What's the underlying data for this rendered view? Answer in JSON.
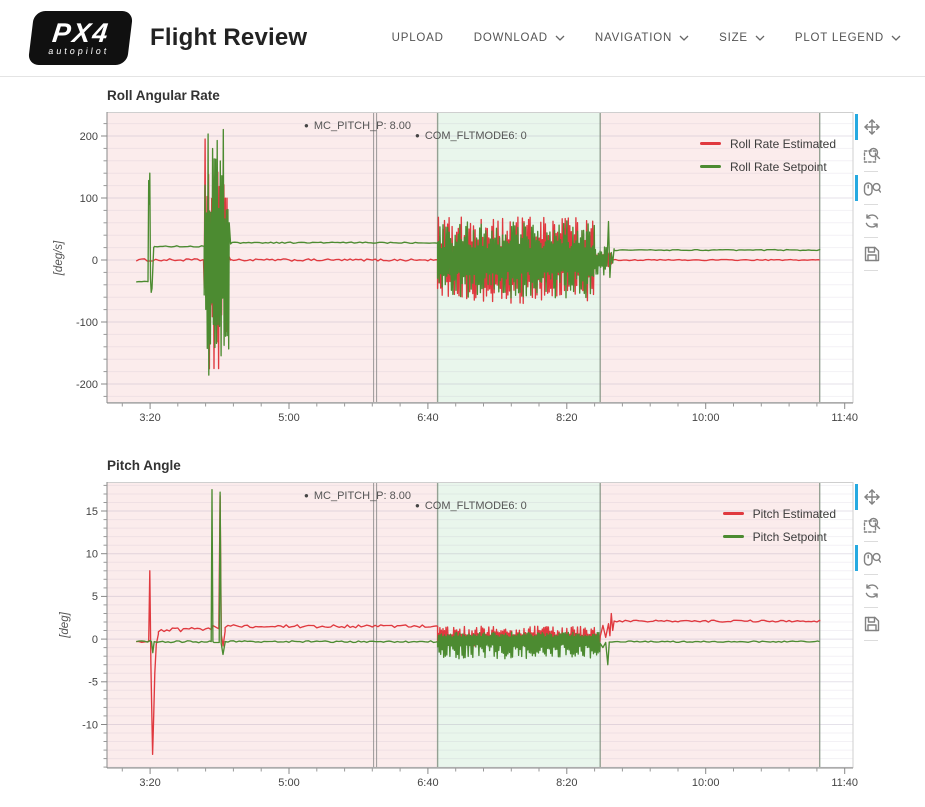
{
  "header": {
    "logo": {
      "line1": "PX4",
      "line2": "autopilot"
    },
    "title": "Flight Review",
    "nav": [
      {
        "label": "UPLOAD",
        "dropdown": false
      },
      {
        "label": "DOWNLOAD",
        "dropdown": true
      },
      {
        "label": "NAVIGATION",
        "dropdown": true
      },
      {
        "label": "SIZE",
        "dropdown": true
      },
      {
        "label": "PLOT LEGEND",
        "dropdown": true
      }
    ]
  },
  "toolbar": {
    "active_color": "#26aae1",
    "tools": [
      {
        "name": "pan",
        "active": true
      },
      {
        "name": "box-zoom",
        "active": false
      },
      {
        "name": "wheel-zoom",
        "active": true
      },
      {
        "name": "reset",
        "active": false
      },
      {
        "name": "save",
        "active": false
      }
    ]
  },
  "colors": {
    "estimated_line": "#e0393f",
    "setpoint_line": "#4c8b31",
    "region_pink": "rgba(205,32,32,0.085)",
    "region_green": "rgba(22,156,51,0.095)",
    "grid": "#8a7aa0",
    "mode_line": "#7d8d7d",
    "param_line": "#8a8a8a",
    "axis_text": "#444444",
    "annotation_text": "#555555"
  },
  "chart_data": [
    {
      "type": "line",
      "title": "Roll Angular Rate",
      "ylabel": "[deg/s]",
      "x_range": [
        169,
        706
      ],
      "y_range": [
        -230.6,
        238.7
      ],
      "x_ticks": [
        {
          "t": 200,
          "label": "3:20"
        },
        {
          "t": 300,
          "label": "5:00"
        },
        {
          "t": 400,
          "label": "6:40"
        },
        {
          "t": 500,
          "label": "8:20"
        },
        {
          "t": 600,
          "label": "10:00"
        },
        {
          "t": 700,
          "label": "11:40"
        }
      ],
      "x_minor_step": 20,
      "y_ticks": [
        -200,
        -100,
        0,
        100,
        200
      ],
      "y_minor_step": 20,
      "regions": [
        {
          "t0": 169,
          "t1": 407,
          "kind": "pink"
        },
        {
          "t0": 407,
          "t1": 524,
          "kind": "green"
        },
        {
          "t0": 524,
          "t1": 682,
          "kind": "pink"
        }
      ],
      "vlines": [
        {
          "t": 362,
          "kind": "param"
        },
        {
          "t": 407,
          "kind": "mode"
        },
        {
          "t": 524,
          "kind": "mode"
        },
        {
          "t": 682,
          "kind": "mode"
        }
      ],
      "annotations": [
        {
          "label": "MC_PITCH_P: 8.00",
          "t": 311,
          "row": 0
        },
        {
          "label": "COM_FLTMODE6: 0",
          "t": 391,
          "row": 1
        }
      ],
      "legend": [
        {
          "label": "Roll Rate Estimated",
          "color_key": "estimated_line"
        },
        {
          "label": "Roll Rate Setpoint",
          "color_key": "setpoint_line"
        }
      ],
      "series": [
        {
          "name": "Roll Rate Estimated",
          "color_key": "estimated_line",
          "segments": [
            {
              "k": "flat",
              "t0": 190,
              "t1": 238,
              "y": 0,
              "n": 2
            },
            {
              "k": "pts",
              "p": [
                [
                  238.5,
                  0
                ],
                [
                  239,
                  -45
                ],
                [
                  239.6,
                  195
                ],
                [
                  240.1,
                  -60
                ],
                [
                  240.5,
                  30
                ]
              ]
            },
            {
              "k": "osc",
              "t0": 240.5,
              "t1": 256,
              "lo": -178,
              "hi": 150
            },
            {
              "k": "pts",
              "p": [
                [
                  256,
                  -30
                ],
                [
                  257,
                  5
                ],
                [
                  258,
                  0
                ]
              ]
            },
            {
              "k": "flat",
              "t0": 258,
              "t1": 407,
              "y": 0,
              "n": 1.8
            },
            {
              "k": "osc",
              "t0": 407,
              "t1": 520,
              "lo": -70,
              "hi": 70
            },
            {
              "k": "osc",
              "t0": 520,
              "t1": 533,
              "lo": -14,
              "hi": 12
            },
            {
              "k": "flat",
              "t0": 533,
              "t1": 682,
              "y": 0,
              "n": 0.9
            }
          ]
        },
        {
          "name": "Roll Rate Setpoint",
          "color_key": "setpoint_line",
          "segments": [
            {
              "k": "flat",
              "t0": 190,
              "t1": 198.5,
              "y": -35,
              "n": 0.8
            },
            {
              "k": "pts",
              "p": [
                [
                  198.5,
                  -35
                ],
                [
                  199,
                  128
                ],
                [
                  199.4,
                  90
                ],
                [
                  199.8,
                  140
                ],
                [
                  200.3,
                  -30
                ],
                [
                  200.8,
                  -52
                ],
                [
                  201.4,
                  -46
                ],
                [
                  202,
                  -15
                ],
                [
                  202.6,
                  20
                ],
                [
                  203.2,
                  22
                ]
              ]
            },
            {
              "k": "flat",
              "t0": 203.2,
              "t1": 239,
              "y": 22,
              "n": 1
            },
            {
              "k": "osc",
              "t0": 239,
              "t1": 257,
              "lo": -188,
              "hi": 218
            },
            {
              "k": "pts",
              "p": [
                [
                  257,
                  60
                ],
                [
                  258,
                  26
                ],
                [
                  259,
                  28
                ]
              ]
            },
            {
              "k": "flat",
              "t0": 259,
              "t1": 407,
              "y": 28,
              "n": 1
            },
            {
              "k": "osc",
              "t0": 407,
              "t1": 520,
              "lo": -62,
              "hi": 64
            },
            {
              "k": "osc",
              "t0": 520,
              "t1": 529,
              "lo": -24,
              "hi": 22
            },
            {
              "k": "pts",
              "p": [
                [
                  529,
                  0
                ],
                [
                  530,
                  62
                ],
                [
                  531,
                  -28
                ],
                [
                  532,
                  12
                ],
                [
                  533,
                  -5
                ],
                [
                  534,
                  18
                ]
              ]
            },
            {
              "k": "flat",
              "t0": 534,
              "t1": 682,
              "y": 16,
              "n": 0.8
            }
          ]
        }
      ]
    },
    {
      "type": "line",
      "title": "Pitch Angle",
      "ylabel": "[deg]",
      "x_range": [
        169,
        706
      ],
      "y_range": [
        -15.1,
        18.4
      ],
      "x_ticks": [
        {
          "t": 200,
          "label": "3:20"
        },
        {
          "t": 300,
          "label": "5:00"
        },
        {
          "t": 400,
          "label": "6:40"
        },
        {
          "t": 500,
          "label": "8:20"
        },
        {
          "t": 600,
          "label": "10:00"
        },
        {
          "t": 700,
          "label": "11:40"
        }
      ],
      "x_minor_step": 20,
      "y_ticks": [
        -10,
        -5,
        0,
        5,
        10,
        15
      ],
      "y_minor_step": 1,
      "regions": [
        {
          "t0": 169,
          "t1": 407,
          "kind": "pink"
        },
        {
          "t0": 407,
          "t1": 524,
          "kind": "green"
        },
        {
          "t0": 524,
          "t1": 682,
          "kind": "pink"
        }
      ],
      "vlines": [
        {
          "t": 362,
          "kind": "param"
        },
        {
          "t": 407,
          "kind": "mode"
        },
        {
          "t": 524,
          "kind": "mode"
        },
        {
          "t": 682,
          "kind": "mode"
        }
      ],
      "annotations": [
        {
          "label": "MC_PITCH_P: 8.00",
          "t": 311,
          "row": 0
        },
        {
          "label": "COM_FLTMODE6: 0",
          "t": 391,
          "row": 1
        }
      ],
      "legend": [
        {
          "label": "Pitch Estimated",
          "color_key": "estimated_line"
        },
        {
          "label": "Pitch Setpoint",
          "color_key": "setpoint_line"
        }
      ],
      "series": [
        {
          "name": "Pitch Estimated",
          "color_key": "estimated_line",
          "segments": [
            {
              "k": "flat",
              "t0": 190,
              "t1": 199,
              "y": -0.3,
              "n": 0.1
            },
            {
              "k": "pts",
              "p": [
                [
                  199,
                  -0.3
                ],
                [
                  199.8,
                  8
                ],
                [
                  200.6,
                  -3
                ],
                [
                  201.2,
                  -8
                ],
                [
                  201.8,
                  -13.5
                ],
                [
                  202.6,
                  -9
                ],
                [
                  203.4,
                  -4
                ],
                [
                  204.5,
                  -0.6
                ],
                [
                  206,
                  0.6
                ]
              ]
            },
            {
              "k": "flat",
              "t0": 206,
              "t1": 244,
              "y": 1.1,
              "n": 0.25
            },
            {
              "k": "pts",
              "p": [
                [
                  244,
                  1.1
                ],
                [
                  245,
                  1.6
                ],
                [
                  249.5,
                  1.2
                ],
                [
                  250.4,
                  16.8
                ],
                [
                  251.3,
                  0.5
                ],
                [
                  252.6,
                  -0.8
                ],
                [
                  254,
                  0.9
                ]
              ]
            },
            {
              "k": "flat",
              "t0": 254,
              "t1": 407,
              "y": 1.5,
              "n": 0.18
            },
            {
              "k": "osc",
              "t0": 407,
              "t1": 524,
              "lo": -0.8,
              "hi": 1.5
            },
            {
              "k": "pts",
              "p": [
                [
                  524,
                  0.3
                ],
                [
                  526,
                  1.6
                ],
                [
                  528,
                  0.2
                ],
                [
                  530,
                  1.8
                ],
                [
                  531,
                  0.4
                ],
                [
                  532,
                  3
                ],
                [
                  533,
                  1
                ],
                [
                  534,
                  2.1
                ]
              ]
            },
            {
              "k": "flat",
              "t0": 534,
              "t1": 682,
              "y": 2.1,
              "n": 0.12
            }
          ]
        },
        {
          "name": "Pitch Setpoint",
          "color_key": "setpoint_line",
          "segments": [
            {
              "k": "flat",
              "t0": 190,
              "t1": 201,
              "y": -0.3,
              "n": 0.12
            },
            {
              "k": "pts",
              "p": [
                [
                  201,
                  -0.3
                ],
                [
                  202,
                  -1.6
                ],
                [
                  203,
                  -0.3
                ]
              ]
            },
            {
              "k": "flat",
              "t0": 203,
              "t1": 244,
              "y": -0.3,
              "n": 0.12
            },
            {
              "k": "pts",
              "p": [
                [
                  244,
                  -0.3
                ],
                [
                  244.6,
                  17.5
                ],
                [
                  245.2,
                  -0.3
                ],
                [
                  246,
                  -0.4
                ],
                [
                  249.8,
                  -0.4
                ],
                [
                  250.4,
                  17.2
                ],
                [
                  251.2,
                  -0.5
                ],
                [
                  252.5,
                  -1.8
                ],
                [
                  254,
                  -0.4
                ]
              ]
            },
            {
              "k": "flat",
              "t0": 254,
              "t1": 407,
              "y": -0.3,
              "n": 0.1
            },
            {
              "k": "osc",
              "t0": 407,
              "t1": 524,
              "lo": -2.3,
              "hi": 0.8
            },
            {
              "k": "pts",
              "p": [
                [
                  524,
                  -0.5
                ],
                [
                  526,
                  -1
                ],
                [
                  528,
                  -0.4
                ],
                [
                  529.5,
                  -3
                ],
                [
                  530.5,
                  -0.5
                ]
              ]
            },
            {
              "k": "flat",
              "t0": 530.5,
              "t1": 682,
              "y": -0.3,
              "n": 0.08
            }
          ]
        }
      ]
    }
  ]
}
